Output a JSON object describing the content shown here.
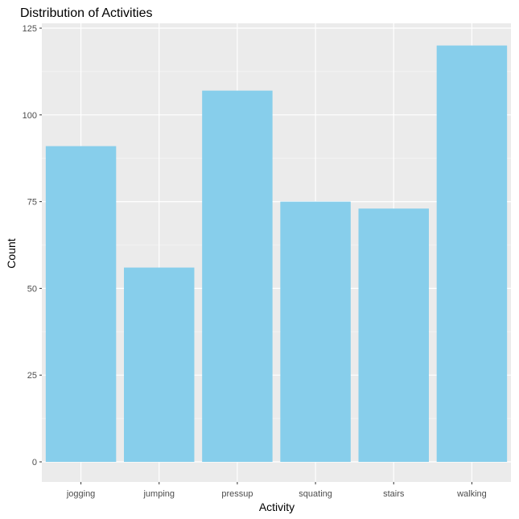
{
  "chart_data": {
    "type": "bar",
    "title": "Distribution of Activities",
    "xlabel": "Activity",
    "ylabel": "Count",
    "categories": [
      "jogging",
      "jumping",
      "pressup",
      "squating",
      "stairs",
      "walking"
    ],
    "values": [
      91,
      56,
      107,
      75,
      73,
      120
    ],
    "ylim": [
      0,
      125
    ],
    "yticks": [
      0,
      25,
      50,
      75,
      100,
      125
    ],
    "grid": true,
    "legend": "none"
  },
  "colors": {
    "bar_fill": "#87CEEB",
    "panel_background": "#EBEBEB",
    "grid_major": "#FFFFFF",
    "grid_minor": "#F5F5F5",
    "tick_text": "#4D4D4D",
    "tick_mark": "#333333"
  }
}
